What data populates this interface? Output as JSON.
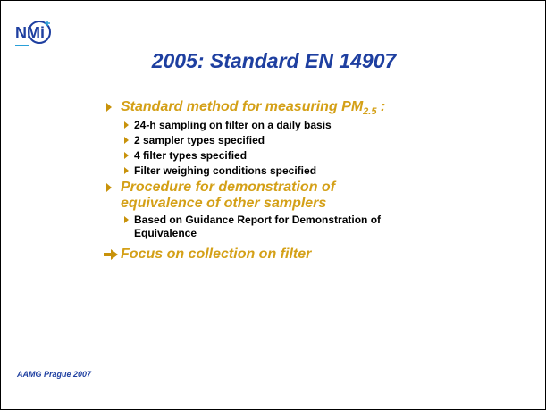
{
  "logo": "NMi",
  "title": "2005: Standard EN 14907",
  "bullets": [
    {
      "text": [
        "Standard method for measuring PM",
        "2.5",
        " :"
      ],
      "items": [
        "24-h sampling on filter on a daily basis",
        "2 sampler types specified",
        "4 filter types specified",
        "Filter weighing conditions specified"
      ]
    },
    {
      "text": "Procedure for demonstration of equivalence of other samplers",
      "items": [
        "Based on Guidance Report for Demonstration of Equivalence"
      ]
    }
  ],
  "conclusion": "Focus on collection on filter",
  "footer": "AAMG Prague 2007"
}
